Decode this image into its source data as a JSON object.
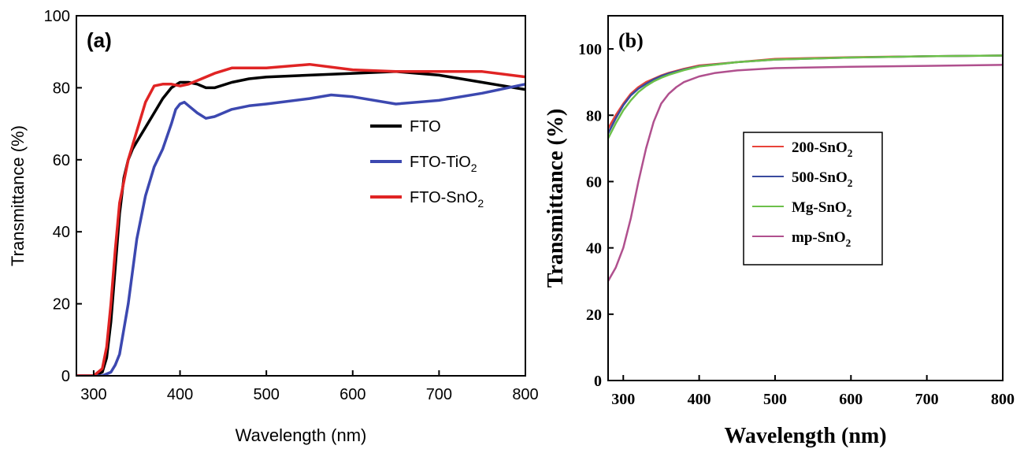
{
  "chart_data": [
    {
      "panel": "(a)",
      "type": "line",
      "xlabel": "Wavelength (nm)",
      "ylabel": "Transmittance (%)",
      "xlim": [
        280,
        800
      ],
      "ylim": [
        0,
        100
      ],
      "xticks": [
        300,
        400,
        500,
        600,
        700,
        800
      ],
      "yticks": [
        0,
        20,
        40,
        60,
        80,
        100
      ],
      "grid": false,
      "legend_position": "center-right",
      "series": [
        {
          "name": "FTO",
          "sub": "",
          "color": "#000000",
          "x": [
            280,
            300,
            310,
            315,
            320,
            325,
            330,
            335,
            340,
            345,
            350,
            360,
            370,
            380,
            390,
            400,
            410,
            420,
            430,
            440,
            460,
            480,
            500,
            550,
            600,
            650,
            700,
            750,
            800
          ],
          "y": [
            0,
            0,
            1,
            5,
            15,
            30,
            45,
            55,
            60,
            63,
            65,
            69,
            73,
            77,
            80,
            81.5,
            81.5,
            81,
            80,
            80,
            81.5,
            82.5,
            83,
            83.5,
            84,
            84.5,
            83.5,
            81.5,
            79.5
          ]
        },
        {
          "name": "FTO-TiO",
          "sub": "2",
          "color": "#3c48b0",
          "x": [
            280,
            310,
            320,
            325,
            330,
            340,
            350,
            360,
            370,
            380,
            390,
            395,
            400,
            405,
            410,
            420,
            430,
            440,
            460,
            480,
            500,
            550,
            575,
            600,
            650,
            700,
            750,
            800
          ],
          "y": [
            0,
            0,
            1,
            3,
            6,
            20,
            38,
            50,
            58,
            63,
            70,
            74,
            75.5,
            76,
            75,
            73,
            71.5,
            72,
            74,
            75,
            75.5,
            77,
            78,
            77.5,
            75.5,
            76.5,
            78.5,
            81
          ]
        },
        {
          "name": "FTO-SnO",
          "sub": "2",
          "color": "#e02424",
          "x": [
            280,
            300,
            310,
            315,
            320,
            325,
            330,
            340,
            350,
            360,
            370,
            380,
            390,
            400,
            410,
            420,
            440,
            460,
            480,
            500,
            550,
            600,
            650,
            700,
            750,
            800
          ],
          "y": [
            0,
            0,
            2,
            8,
            20,
            35,
            48,
            60,
            68,
            76,
            80.5,
            81,
            81,
            80.5,
            81,
            82,
            84,
            85.5,
            85.5,
            85.5,
            86.5,
            85,
            84.5,
            84.5,
            84.5,
            83
          ]
        }
      ]
    },
    {
      "panel": "(b)",
      "type": "line",
      "xlabel": "Wavelength (nm)",
      "ylabel": "Transmittance (%)",
      "xlim": [
        280,
        800
      ],
      "ylim": [
        0,
        110
      ],
      "xticks": [
        300,
        400,
        500,
        600,
        700,
        800
      ],
      "yticks": [
        0,
        20,
        40,
        60,
        80,
        100
      ],
      "grid": false,
      "legend_position": "center-left",
      "series": [
        {
          "name": "200-SnO",
          "sub": "2",
          "color": "#e8433a",
          "x": [
            280,
            290,
            300,
            310,
            320,
            330,
            340,
            350,
            360,
            380,
            400,
            450,
            500,
            600,
            700,
            800
          ],
          "y": [
            76,
            80,
            83.5,
            86.5,
            88.5,
            90,
            91,
            92,
            92.8,
            94,
            95,
            96,
            97,
            97.5,
            97.8,
            98
          ]
        },
        {
          "name": "500-SnO",
          "sub": "2",
          "color": "#3a4a9e",
          "x": [
            280,
            290,
            300,
            310,
            320,
            330,
            340,
            350,
            360,
            380,
            400,
            450,
            500,
            600,
            700,
            800
          ],
          "y": [
            74.5,
            79,
            83,
            86,
            88,
            89.5,
            90.8,
            91.8,
            92.6,
            93.8,
            94.8,
            96,
            96.8,
            97.4,
            97.8,
            98
          ]
        },
        {
          "name": "Mg-SnO",
          "sub": "2",
          "color": "#6cc04a",
          "x": [
            280,
            290,
            300,
            310,
            320,
            330,
            340,
            350,
            360,
            380,
            400,
            450,
            500,
            600,
            700,
            800
          ],
          "y": [
            73,
            77.5,
            81.5,
            84.5,
            87,
            88.8,
            90.2,
            91.3,
            92.2,
            93.6,
            94.7,
            96,
            96.8,
            97.4,
            97.8,
            98
          ]
        },
        {
          "name": "mp-SnO",
          "sub": "2",
          "color": "#b0508e",
          "x": [
            280,
            290,
            300,
            310,
            320,
            330,
            340,
            350,
            360,
            370,
            380,
            400,
            420,
            450,
            500,
            600,
            700,
            800
          ],
          "y": [
            30,
            34,
            40,
            49,
            60,
            70,
            78,
            83.5,
            86.5,
            88.5,
            90,
            91.7,
            92.7,
            93.5,
            94.2,
            94.6,
            94.9,
            95.2
          ]
        }
      ]
    }
  ]
}
